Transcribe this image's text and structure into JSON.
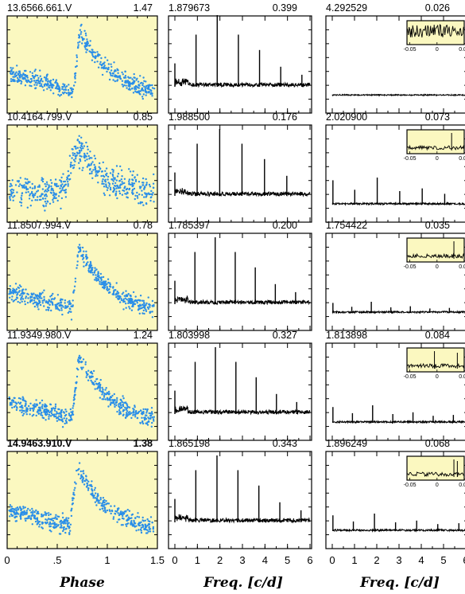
{
  "colors": {
    "phase_bg": "#fbf8c0",
    "phase_points": "#2a8ee8",
    "frame": "#000000",
    "line": "#000000"
  },
  "rows": [
    {
      "id": "13.6566.661.V",
      "amp": "1.47",
      "freq1": "1.879673",
      "power1": "0.399",
      "freq2": "4.292529",
      "power2": "0.026",
      "bold": false
    },
    {
      "id": "10.4164.799.V",
      "amp": "0.85",
      "freq1": "1.988500",
      "power1": "0.176",
      "freq2": "2.020900",
      "power2": "0.073",
      "bold": false
    },
    {
      "id": "11.8507.994.V",
      "amp": "0.78",
      "freq1": "1.785397",
      "power1": "0.200",
      "freq2": "1.754422",
      "power2": "0.035",
      "bold": false
    },
    {
      "id": "11.9349.980.V",
      "amp": "1.24",
      "freq1": "1.803998",
      "power1": "0.327",
      "freq2": "1.813898",
      "power2": "0.084",
      "bold": false
    },
    {
      "id": "14.9463.910.V",
      "amp": "1.38",
      "freq1": "1.865198",
      "power1": "0.343",
      "freq2": "1.896249",
      "power2": "0.068",
      "bold": true
    }
  ],
  "axes": {
    "phase_label": "Phase",
    "phase_ticks": [
      "0",
      ".5",
      "1",
      "1.5"
    ],
    "phase_tick_values": [
      0,
      0.5,
      1,
      1.5
    ],
    "freq_label": "Freq. [c/d]",
    "freq_ticks": [
      "0",
      "1",
      "2",
      "3",
      "4",
      "5",
      "6"
    ],
    "freq_tick_values": [
      0,
      1,
      2,
      3,
      4,
      5,
      6
    ],
    "inset_ticks": [
      "-0.05",
      "0",
      "0.05"
    ],
    "inset_tick_values": [
      -0.05,
      0,
      0.05
    ]
  },
  "chart_data": [
    {
      "type": "scatter",
      "panel": "phase light curve",
      "row": 1,
      "xlim": [
        0,
        1.5
      ],
      "shape": "sawtooth",
      "peak_phase": 0.73,
      "min_phase": 0.65
    },
    {
      "type": "line",
      "panel": "periodogram",
      "row": 1,
      "xlim": [
        0,
        6
      ],
      "peak_frequency": 1.879673,
      "peak_power": 0.399,
      "harmonic_peaks_x": [
        0.94,
        1.88,
        2.82,
        3.76,
        4.7,
        5.64
      ]
    },
    {
      "type": "line",
      "panel": "residual periodogram",
      "row": 1,
      "xlim": [
        0,
        6
      ],
      "peak_frequency": 4.292529,
      "peak_power": 0.026,
      "inset_xlim": [
        -0.05,
        0.05
      ]
    },
    {
      "type": "scatter",
      "panel": "phase light curve",
      "row": 2,
      "xlim": [
        0,
        1.5
      ],
      "shape": "hump",
      "peak_phase": 0.72
    },
    {
      "type": "line",
      "panel": "periodogram",
      "row": 2,
      "xlim": [
        0,
        6
      ],
      "peak_frequency": 1.9885,
      "peak_power": 0.176,
      "harmonic_peaks_x": [
        0.99,
        1.99,
        2.98,
        3.98,
        4.97
      ]
    },
    {
      "type": "line",
      "panel": "residual periodogram",
      "row": 2,
      "xlim": [
        0,
        6
      ],
      "peak_frequency": 2.0209,
      "peak_power": 0.073,
      "inset_xlim": [
        -0.05,
        0.05
      ]
    },
    {
      "type": "scatter",
      "panel": "phase light curve",
      "row": 3,
      "xlim": [
        0,
        1.5
      ],
      "shape": "sawtooth",
      "peak_phase": 0.72
    },
    {
      "type": "line",
      "panel": "periodogram",
      "row": 3,
      "xlim": [
        0,
        6
      ],
      "peak_frequency": 1.785397,
      "peak_power": 0.2,
      "harmonic_peaks_x": [
        0.89,
        1.79,
        2.68,
        3.57,
        4.46,
        5.36
      ]
    },
    {
      "type": "line",
      "panel": "residual periodogram",
      "row": 3,
      "xlim": [
        0,
        6
      ],
      "peak_frequency": 1.754422,
      "peak_power": 0.035,
      "inset_xlim": [
        -0.05,
        0.05
      ]
    },
    {
      "type": "scatter",
      "panel": "phase light curve",
      "row": 4,
      "xlim": [
        0,
        1.5
      ],
      "shape": "sawtooth",
      "peak_phase": 0.72
    },
    {
      "type": "line",
      "panel": "periodogram",
      "row": 4,
      "xlim": [
        0,
        6
      ],
      "peak_frequency": 1.803998,
      "peak_power": 0.327,
      "harmonic_peaks_x": [
        0.9,
        1.8,
        2.71,
        3.61,
        4.51,
        5.41
      ]
    },
    {
      "type": "line",
      "panel": "residual periodogram",
      "row": 4,
      "xlim": [
        0,
        6
      ],
      "peak_frequency": 1.813898,
      "peak_power": 0.084,
      "inset_xlim": [
        -0.05,
        0.05
      ]
    },
    {
      "type": "scatter",
      "panel": "phase light curve",
      "row": 5,
      "xlim": [
        0,
        1.5
      ],
      "shape": "sawtooth",
      "peak_phase": 0.7
    },
    {
      "type": "line",
      "panel": "periodogram",
      "row": 5,
      "xlim": [
        0,
        6
      ],
      "peak_frequency": 1.865198,
      "peak_power": 0.343,
      "harmonic_peaks_x": [
        0.93,
        1.87,
        2.8,
        3.73,
        4.66,
        5.6
      ]
    },
    {
      "type": "line",
      "panel": "residual periodogram",
      "row": 5,
      "xlim": [
        0,
        6
      ],
      "peak_frequency": 1.896249,
      "peak_power": 0.068,
      "inset_xlim": [
        -0.05,
        0.05
      ]
    }
  ]
}
